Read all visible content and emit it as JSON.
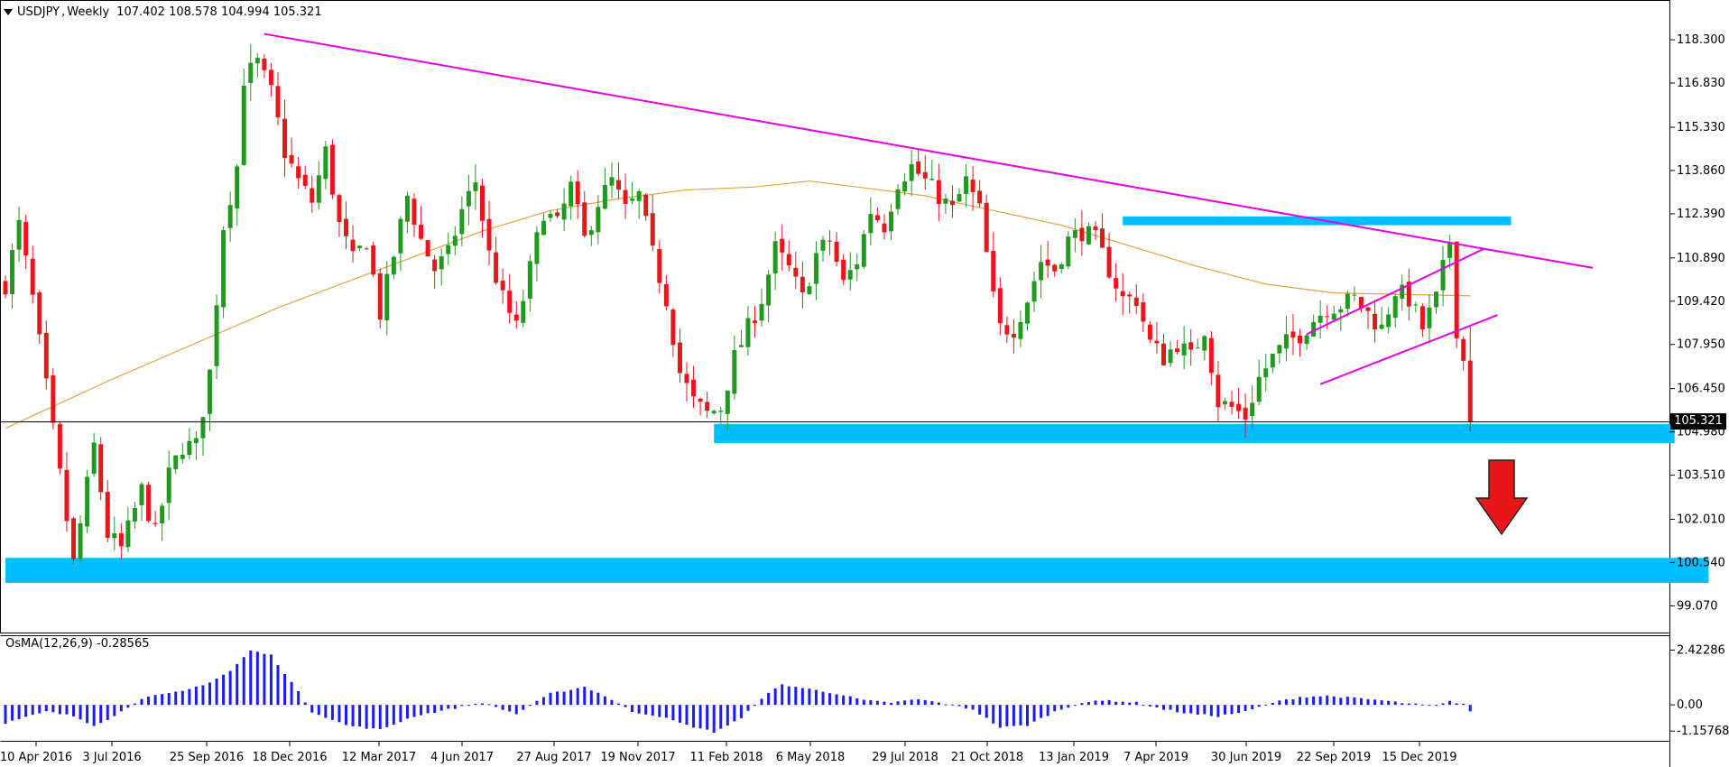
{
  "header": {
    "symbol": "USDJPY",
    "timeframe": "Weekly",
    "ohlc": "107.402 108.578 104.994 105.321"
  },
  "oscillator": {
    "label": "OsMA(12,26,9)",
    "value": "-0.28565",
    "y_ticks": [
      "2.42286",
      "0.00",
      "-1.15768"
    ]
  },
  "colors": {
    "bull": "#1f9a1f",
    "bear": "#e8151b",
    "ma": "#e8a040",
    "trend": "#e600e6",
    "zone": "#00bfff",
    "osma": "#1a1aff",
    "arrow": "#e8151b"
  },
  "chart_data": {
    "type": "candlestick",
    "symbol": "USDJPY",
    "timeframe": "Weekly",
    "ylim": [
      98.5,
      119.1
    ],
    "y_ticks": [
      118.3,
      116.83,
      115.33,
      113.86,
      112.39,
      110.89,
      109.42,
      107.95,
      106.45,
      104.98,
      103.51,
      102.01,
      100.54,
      99.07
    ],
    "y_tick_labels": [
      "118.300",
      "116.830",
      "115.330",
      "113.860",
      "112.390",
      "110.890",
      "109.420",
      "107.950",
      "106.450",
      "104.980",
      "103.510",
      "102.010",
      "100.540",
      "99.070"
    ],
    "x_labels": [
      "10 Apr 2016",
      "3 Jul 2016",
      "25 Sep 2016",
      "18 Dec 2016",
      "12 Mar 2017",
      "4 Jun 2017",
      "27 Aug 2017",
      "19 Nov 2017",
      "11 Feb 2018",
      "6 May 2018",
      "29 Jul 2018",
      "21 Oct 2018",
      "13 Jan 2019",
      "7 Apr 2019",
      "30 Jun 2019",
      "22 Sep 2019",
      "15 Dec 2019"
    ],
    "current_price": "105.321",
    "anchors": [
      {
        "w": 0,
        "p": 110.0
      },
      {
        "w": 2,
        "p": 112.0
      },
      {
        "w": 4,
        "p": 109.5
      },
      {
        "w": 6,
        "p": 106.5
      },
      {
        "w": 8,
        "p": 103.5
      },
      {
        "w": 10,
        "p": 100.5
      },
      {
        "w": 13,
        "p": 104.5
      },
      {
        "w": 15,
        "p": 101.5
      },
      {
        "w": 17,
        "p": 101.0
      },
      {
        "w": 20,
        "p": 103.0
      },
      {
        "w": 22,
        "p": 101.5
      },
      {
        "w": 24,
        "p": 103.5
      },
      {
        "w": 26,
        "p": 104.5
      },
      {
        "w": 28,
        "p": 104.5
      },
      {
        "w": 30,
        "p": 107.0
      },
      {
        "w": 32,
        "p": 112.0
      },
      {
        "w": 34,
        "p": 114.0
      },
      {
        "w": 35,
        "p": 117.0
      },
      {
        "w": 37,
        "p": 117.5
      },
      {
        "w": 39,
        "p": 116.5
      },
      {
        "w": 41,
        "p": 114.5
      },
      {
        "w": 43,
        "p": 113.5
      },
      {
        "w": 45,
        "p": 112.8
      },
      {
        "w": 47,
        "p": 114.5
      },
      {
        "w": 49,
        "p": 112.0
      },
      {
        "w": 51,
        "p": 110.8
      },
      {
        "w": 53,
        "p": 111.5
      },
      {
        "w": 55,
        "p": 109.0
      },
      {
        "w": 57,
        "p": 111.0
      },
      {
        "w": 59,
        "p": 113.0
      },
      {
        "w": 61,
        "p": 111.5
      },
      {
        "w": 63,
        "p": 110.5
      },
      {
        "w": 65,
        "p": 111.0
      },
      {
        "w": 67,
        "p": 112.5
      },
      {
        "w": 69,
        "p": 113.5
      },
      {
        "w": 71,
        "p": 111.0
      },
      {
        "w": 73,
        "p": 109.5
      },
      {
        "w": 75,
        "p": 108.5
      },
      {
        "w": 77,
        "p": 110.5
      },
      {
        "w": 79,
        "p": 112.5
      },
      {
        "w": 81,
        "p": 112.0
      },
      {
        "w": 83,
        "p": 113.3
      },
      {
        "w": 85,
        "p": 111.5
      },
      {
        "w": 87,
        "p": 112.8
      },
      {
        "w": 89,
        "p": 113.5
      },
      {
        "w": 91,
        "p": 112.5
      },
      {
        "w": 93,
        "p": 113.0
      },
      {
        "w": 95,
        "p": 111.0
      },
      {
        "w": 97,
        "p": 109.5
      },
      {
        "w": 99,
        "p": 107.0
      },
      {
        "w": 101,
        "p": 106.0
      },
      {
        "w": 103,
        "p": 105.6
      },
      {
        "w": 105,
        "p": 105.8
      },
      {
        "w": 107,
        "p": 107.5
      },
      {
        "w": 109,
        "p": 108.5
      },
      {
        "w": 111,
        "p": 109.5
      },
      {
        "w": 113,
        "p": 111.2
      },
      {
        "w": 115,
        "p": 110.5
      },
      {
        "w": 117,
        "p": 109.5
      },
      {
        "w": 119,
        "p": 111.0
      },
      {
        "w": 121,
        "p": 111.5
      },
      {
        "w": 123,
        "p": 110.0
      },
      {
        "w": 125,
        "p": 110.8
      },
      {
        "w": 127,
        "p": 112.5
      },
      {
        "w": 129,
        "p": 112.0
      },
      {
        "w": 131,
        "p": 113.5
      },
      {
        "w": 133,
        "p": 114.0
      },
      {
        "w": 135,
        "p": 113.5
      },
      {
        "w": 137,
        "p": 113.0
      },
      {
        "w": 139,
        "p": 112.5
      },
      {
        "w": 141,
        "p": 113.5
      },
      {
        "w": 143,
        "p": 112.5
      },
      {
        "w": 145,
        "p": 109.5
      },
      {
        "w": 146,
        "p": 108.5
      },
      {
        "w": 148,
        "p": 108.5
      },
      {
        "w": 150,
        "p": 109.5
      },
      {
        "w": 152,
        "p": 110.8
      },
      {
        "w": 154,
        "p": 110.5
      },
      {
        "w": 156,
        "p": 111.5
      },
      {
        "w": 158,
        "p": 111.8
      },
      {
        "w": 160,
        "p": 111.5
      },
      {
        "w": 162,
        "p": 110.5
      },
      {
        "w": 164,
        "p": 109.5
      },
      {
        "w": 166,
        "p": 109.5
      },
      {
        "w": 168,
        "p": 108.0
      },
      {
        "w": 170,
        "p": 107.5
      },
      {
        "w": 172,
        "p": 108.0
      },
      {
        "w": 174,
        "p": 107.5
      },
      {
        "w": 176,
        "p": 108.5
      },
      {
        "w": 178,
        "p": 106.0
      },
      {
        "w": 180,
        "p": 105.8
      },
      {
        "w": 182,
        "p": 105.5
      },
      {
        "w": 184,
        "p": 106.8
      },
      {
        "w": 186,
        "p": 107.5
      },
      {
        "w": 188,
        "p": 108.0
      },
      {
        "w": 190,
        "p": 108.3
      },
      {
        "w": 192,
        "p": 108.8
      },
      {
        "w": 194,
        "p": 109.2
      },
      {
        "w": 196,
        "p": 109.3
      },
      {
        "w": 198,
        "p": 109.5
      },
      {
        "w": 200,
        "p": 109.0
      },
      {
        "w": 202,
        "p": 108.5
      },
      {
        "w": 204,
        "p": 109.8
      },
      {
        "w": 206,
        "p": 109.5
      },
      {
        "w": 208,
        "p": 108.5
      },
      {
        "w": 210,
        "p": 109.5
      },
      {
        "w": 212,
        "p": 111.5
      },
      {
        "w": 213,
        "p": 108.5
      },
      {
        "w": 214,
        "p": 107.4
      },
      {
        "w": 215,
        "p": 105.321
      }
    ],
    "moving_average": [
      {
        "w": 0,
        "p": 105.1
      },
      {
        "w": 15,
        "p": 106.7
      },
      {
        "w": 30,
        "p": 108.2
      },
      {
        "w": 40,
        "p": 109.2
      },
      {
        "w": 55,
        "p": 110.5
      },
      {
        "w": 70,
        "p": 111.8
      },
      {
        "w": 80,
        "p": 112.5
      },
      {
        "w": 90,
        "p": 112.9
      },
      {
        "w": 100,
        "p": 113.2
      },
      {
        "w": 110,
        "p": 113.3
      },
      {
        "w": 118,
        "p": 113.5
      },
      {
        "w": 125,
        "p": 113.3
      },
      {
        "w": 135,
        "p": 113.0
      },
      {
        "w": 145,
        "p": 112.5
      },
      {
        "w": 155,
        "p": 112.0
      },
      {
        "w": 165,
        "p": 111.3
      },
      {
        "w": 175,
        "p": 110.6
      },
      {
        "w": 185,
        "p": 110.0
      },
      {
        "w": 195,
        "p": 109.7
      },
      {
        "w": 205,
        "p": 109.65
      },
      {
        "w": 215,
        "p": 109.6
      }
    ],
    "trendlines": [
      {
        "name": "descending",
        "from": {
          "w": 38,
          "p": 118.5
        },
        "to": {
          "w": 233,
          "p": 110.55
        }
      },
      {
        "name": "channel-upper",
        "from": {
          "w": 191,
          "p": 108.3
        },
        "to": {
          "w": 217,
          "p": 111.2
        }
      },
      {
        "name": "channel-lower",
        "from": {
          "w": 193,
          "p": 106.6
        },
        "to": {
          "w": 219,
          "p": 108.95
        }
      }
    ],
    "zones": [
      {
        "name": "resistance",
        "from_w": 164,
        "to_w": 221,
        "low": 112.0,
        "high": 112.3
      },
      {
        "name": "support",
        "from_w": 104,
        "to_w": 245,
        "low": 104.6,
        "high": 105.25
      },
      {
        "name": "lower-support",
        "from_w": 0,
        "to_w": 250,
        "low": 99.85,
        "high": 100.7
      }
    ],
    "osma": {
      "ylim": [
        -1.35,
        2.6
      ],
      "anchors": [
        {
          "w": 0,
          "v": -0.8
        },
        {
          "w": 6,
          "v": -0.3
        },
        {
          "w": 10,
          "v": -0.5
        },
        {
          "w": 13,
          "v": -0.9
        },
        {
          "w": 16,
          "v": -0.5
        },
        {
          "w": 20,
          "v": 0.3
        },
        {
          "w": 26,
          "v": 0.6
        },
        {
          "w": 30,
          "v": 1.0
        },
        {
          "w": 33,
          "v": 1.5
        },
        {
          "w": 36,
          "v": 2.4
        },
        {
          "w": 39,
          "v": 2.2
        },
        {
          "w": 42,
          "v": 1.0
        },
        {
          "w": 45,
          "v": -0.3
        },
        {
          "w": 50,
          "v": -0.9
        },
        {
          "w": 55,
          "v": -1.1
        },
        {
          "w": 60,
          "v": -0.5
        },
        {
          "w": 65,
          "v": -0.2
        },
        {
          "w": 70,
          "v": 0.1
        },
        {
          "w": 75,
          "v": -0.4
        },
        {
          "w": 80,
          "v": 0.5
        },
        {
          "w": 85,
          "v": 0.8
        },
        {
          "w": 88,
          "v": 0.4
        },
        {
          "w": 92,
          "v": -0.3
        },
        {
          "w": 96,
          "v": -0.5
        },
        {
          "w": 100,
          "v": -0.9
        },
        {
          "w": 104,
          "v": -1.2
        },
        {
          "w": 108,
          "v": -0.6
        },
        {
          "w": 111,
          "v": 0.3
        },
        {
          "w": 114,
          "v": 0.9
        },
        {
          "w": 118,
          "v": 0.7
        },
        {
          "w": 122,
          "v": 0.5
        },
        {
          "w": 126,
          "v": 0.2
        },
        {
          "w": 130,
          "v": 0.1
        },
        {
          "w": 134,
          "v": 0.25
        },
        {
          "w": 138,
          "v": 0.05
        },
        {
          "w": 142,
          "v": -0.2
        },
        {
          "w": 146,
          "v": -1.0
        },
        {
          "w": 150,
          "v": -0.9
        },
        {
          "w": 154,
          "v": -0.3
        },
        {
          "w": 158,
          "v": 0.1
        },
        {
          "w": 162,
          "v": 0.2
        },
        {
          "w": 166,
          "v": 0.1
        },
        {
          "w": 170,
          "v": -0.2
        },
        {
          "w": 174,
          "v": -0.4
        },
        {
          "w": 178,
          "v": -0.5
        },
        {
          "w": 182,
          "v": -0.3
        },
        {
          "w": 186,
          "v": 0.1
        },
        {
          "w": 190,
          "v": 0.35
        },
        {
          "w": 194,
          "v": 0.4
        },
        {
          "w": 198,
          "v": 0.3
        },
        {
          "w": 202,
          "v": 0.2
        },
        {
          "w": 206,
          "v": 0.05
        },
        {
          "w": 210,
          "v": -0.05
        },
        {
          "w": 212,
          "v": 0.15
        },
        {
          "w": 214,
          "v": 0.05
        },
        {
          "w": 215,
          "v": -0.28565
        }
      ]
    }
  }
}
